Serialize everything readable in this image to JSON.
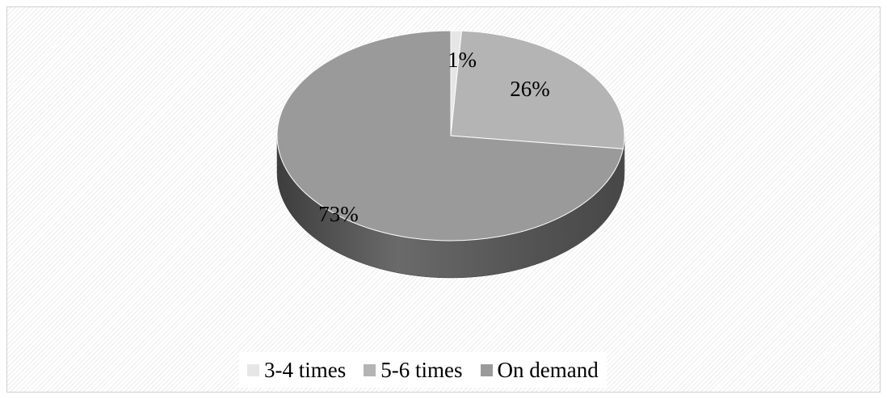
{
  "chart_data": {
    "type": "pie",
    "title": "",
    "style": "3d",
    "categories": [
      "3-4 times",
      "5-6 times",
      "On demand"
    ],
    "values": [
      1,
      26,
      73
    ],
    "data_labels": [
      "1%",
      "26%",
      "73%"
    ],
    "colors": [
      "#e6e6e6",
      "#b4b4b4",
      "#9a9a9a"
    ],
    "side_colors": [
      "#a8a8a8",
      "#7f7f7f",
      "#555555"
    ],
    "legend_position": "bottom"
  }
}
